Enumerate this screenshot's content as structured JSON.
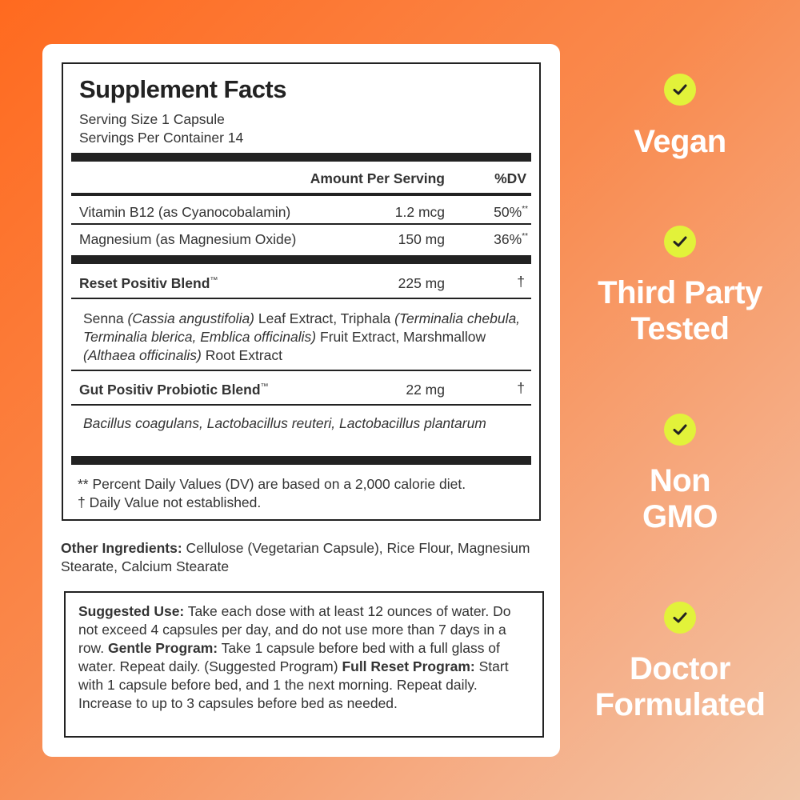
{
  "facts": {
    "title": "Supplement Facts",
    "serving_size": "Serving Size 1 Capsule",
    "servings_per_container": "Servings Per Container 14",
    "col_amount": "Amount Per Serving",
    "col_dv": "%DV",
    "rows": [
      {
        "name": "Vitamin B12 (as Cyanocobalamin)",
        "amount": "1.2 mcg",
        "dv": "50%",
        "dv_mark": "**"
      },
      {
        "name": "Magnesium (as Magnesium Oxide)",
        "amount": "150 mg",
        "dv": "36%",
        "dv_mark": "**"
      }
    ],
    "blend1": {
      "name": "Reset Positiv Blend",
      "tm": "™",
      "amount": "225 mg",
      "dv": "†",
      "ingredients": [
        {
          "text": "Senna ",
          "italic": false
        },
        {
          "text": "(Cassia angustifolia)",
          "italic": true
        },
        {
          "text": " Leaf Extract, Triphala ",
          "italic": false
        },
        {
          "text": "(Terminalia chebula, Terminalia blerica, Emblica officinalis)",
          "italic": true
        },
        {
          "text": " Fruit Extract, Marshmallow ",
          "italic": false
        },
        {
          "text": "(Althaea officinalis)",
          "italic": true
        },
        {
          "text": " Root Extract",
          "italic": false
        }
      ]
    },
    "blend2": {
      "name": "Gut Positiv Probiotic Blend",
      "tm": "™",
      "amount": "22 mg",
      "dv": "†",
      "ingredients": "Bacillus coagulans, Lactobacillus reuteri, Lactobacillus plantarum"
    },
    "footnote1": "** Percent Daily Values (DV) are based on a 2,000 calorie diet.",
    "footnote2": "† Daily Value not established."
  },
  "other_ingredients": {
    "label": "Other Ingredients:",
    "text": " Cellulose (Vegetarian Capsule), Rice Flour, Magnesium Stearate, Calcium Stearate"
  },
  "suggested_use": [
    {
      "text": "Suggested Use:",
      "bold": true
    },
    {
      "text": " Take each dose with at least 12 ounces of water. Do not exceed 4 capsules per day, and do not use more than 7 days in a row. ",
      "bold": false
    },
    {
      "text": "Gentle Program:",
      "bold": true
    },
    {
      "text": " Take 1 capsule before bed with a full glass of water. Repeat daily. (Suggested Program) ",
      "bold": false
    },
    {
      "text": "Full Reset Program:",
      "bold": true
    },
    {
      "text": " Start with 1 capsule before bed, and 1 the next morning. Repeat daily. Increase to up to 3 capsules before bed as needed.",
      "bold": false
    }
  ],
  "badges": [
    {
      "icon": "check-icon",
      "lines": [
        "Vegan"
      ]
    },
    {
      "icon": "check-icon",
      "lines": [
        "Third Party",
        "Tested"
      ]
    },
    {
      "icon": "check-icon",
      "lines": [
        "Non",
        "GMO"
      ]
    },
    {
      "icon": "check-icon",
      "lines": [
        "Doctor",
        "Formulated"
      ]
    }
  ],
  "colors": {
    "badge_check": "#e2f23a",
    "accent_orange": "#ff6a1f",
    "text_dark": "#222222"
  }
}
